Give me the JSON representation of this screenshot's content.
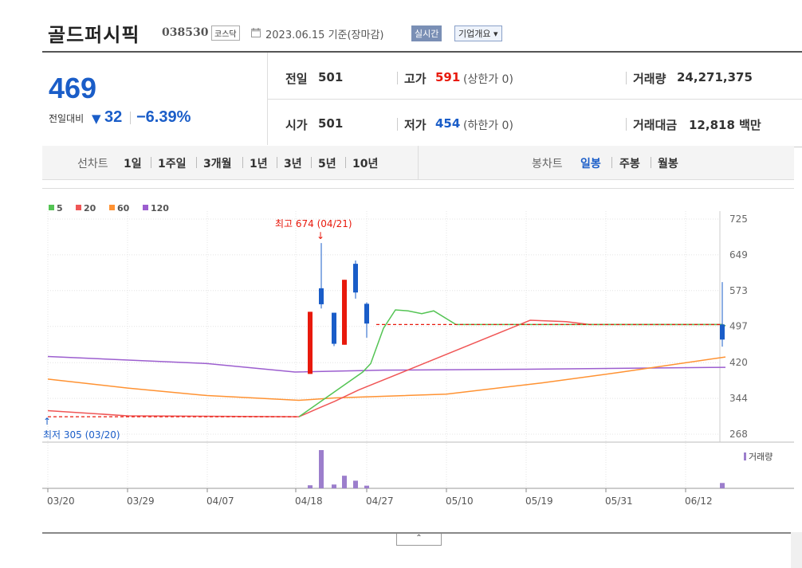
{
  "header": {
    "company_name": "골드퍼시픽",
    "company_code": "038530",
    "market_badge": "코스닥",
    "base_date": "2023.06.15 기준(장마감)",
    "realtime_label": "실시간",
    "overview_label": "기업개요 ▾"
  },
  "summary": {
    "current_price": "469",
    "change_label": "전일대비",
    "change_arrow": "▼",
    "change_amount": "32",
    "change_rate": "−6.39%",
    "prev_close_label": "전일",
    "prev_close": "501",
    "open_label": "시가",
    "open": "501",
    "high_label": "고가",
    "high": "591",
    "upper_limit": "(상한가 0)",
    "low_label": "저가",
    "low": "454",
    "lower_limit": "(하한가 0)",
    "volume_label": "거래량",
    "volume": "24,271,375",
    "amount_label": "거래대금",
    "amount": "12,818 백만"
  },
  "tabs": {
    "line_chart_label": "선차트",
    "periods": [
      "1일",
      "1주일",
      "3개월",
      "1년",
      "3년",
      "5년",
      "10년"
    ],
    "candle_chart_label": "봉차트",
    "candle_periods": [
      "일봉",
      "주봉",
      "월봉"
    ],
    "active_candle": "일봉"
  },
  "colors": {
    "up": "#e8190c",
    "down": "#1a5dc8",
    "ma5": "#54c454",
    "ma20": "#f05656",
    "ma60": "#ff9232",
    "ma120": "#9c5ecf",
    "volume": "#9c7ecc"
  },
  "chart_data": {
    "type": "candlestick",
    "legend": [
      {
        "name": "5",
        "color": "#54c454"
      },
      {
        "name": "20",
        "color": "#f05656"
      },
      {
        "name": "60",
        "color": "#ff9232"
      },
      {
        "name": "120",
        "color": "#9c5ecf"
      }
    ],
    "y_ticks": [
      725,
      649,
      573,
      497,
      420,
      344,
      268
    ],
    "ylim": [
      268,
      725
    ],
    "x_ticks": [
      "03/20",
      "03/29",
      "04/07",
      "04/18",
      "04/27",
      "05/10",
      "05/19",
      "05/31",
      "06/12"
    ],
    "annotation_high": "최고 674 (04/21)",
    "annotation_low": "최저 305 (03/20)",
    "volume_legend": "거래량",
    "candles": [
      {
        "date": "04/18",
        "open": 396,
        "close": 528,
        "high": 528,
        "low": 396
      },
      {
        "date": "04/21",
        "open": 578,
        "close": 544,
        "high": 674,
        "low": 535
      },
      {
        "date": "04/24",
        "open": 526,
        "close": 460,
        "high": 526,
        "low": 455
      },
      {
        "date": "04/25",
        "open": 458,
        "close": 596,
        "high": 596,
        "low": 458
      },
      {
        "date": "04/26",
        "open": 630,
        "close": 569,
        "high": 637,
        "low": 556
      },
      {
        "date": "04/27",
        "open": 545,
        "close": 503,
        "high": 548,
        "low": 473
      },
      {
        "date": "06/15",
        "open": 501,
        "close": 469,
        "high": 591,
        "low": 454
      }
    ],
    "flat_close": {
      "value": 305,
      "from": "03/20",
      "to": "04/17"
    },
    "flat_close_2": {
      "value": 501,
      "from": "04/28",
      "to": "06/14"
    },
    "ma5": [
      {
        "t": 315,
        "v": 305
      },
      {
        "t": 395,
        "v": 400
      },
      {
        "t": 405,
        "v": 418
      },
      {
        "t": 421,
        "v": 493
      },
      {
        "t": 436,
        "v": 532
      },
      {
        "t": 452,
        "v": 530
      },
      {
        "t": 469,
        "v": 524
      },
      {
        "t": 484,
        "v": 530
      },
      {
        "t": 512,
        "v": 501
      },
      {
        "t": 846,
        "v": 501
      },
      {
        "t": 850,
        "v": 498
      }
    ],
    "ma20": [
      {
        "t": 0,
        "v": 318
      },
      {
        "t": 100,
        "v": 307
      },
      {
        "t": 315,
        "v": 305
      },
      {
        "t": 338,
        "v": 322
      },
      {
        "t": 360,
        "v": 338
      },
      {
        "t": 390,
        "v": 362
      },
      {
        "t": 460,
        "v": 410
      },
      {
        "t": 605,
        "v": 510
      },
      {
        "t": 650,
        "v": 507
      },
      {
        "t": 680,
        "v": 501
      },
      {
        "t": 846,
        "v": 501
      },
      {
        "t": 850,
        "v": 498
      }
    ],
    "ma60": [
      {
        "t": 0,
        "v": 385
      },
      {
        "t": 100,
        "v": 366
      },
      {
        "t": 200,
        "v": 350
      },
      {
        "t": 315,
        "v": 340
      },
      {
        "t": 360,
        "v": 345
      },
      {
        "t": 500,
        "v": 353
      },
      {
        "t": 620,
        "v": 377
      },
      {
        "t": 720,
        "v": 400
      },
      {
        "t": 850,
        "v": 432
      }
    ],
    "ma120": [
      {
        "t": 0,
        "v": 433
      },
      {
        "t": 200,
        "v": 418
      },
      {
        "t": 310,
        "v": 400
      },
      {
        "t": 420,
        "v": 404
      },
      {
        "t": 600,
        "v": 406
      },
      {
        "t": 850,
        "v": 410
      }
    ],
    "volume_bars": [
      {
        "t": 329,
        "v": 8
      },
      {
        "t": 343,
        "v": 100
      },
      {
        "t": 359,
        "v": 10
      },
      {
        "t": 372,
        "v": 33
      },
      {
        "t": 386,
        "v": 20
      },
      {
        "t": 400,
        "v": 7
      },
      {
        "t": 846,
        "v": 14
      }
    ]
  }
}
